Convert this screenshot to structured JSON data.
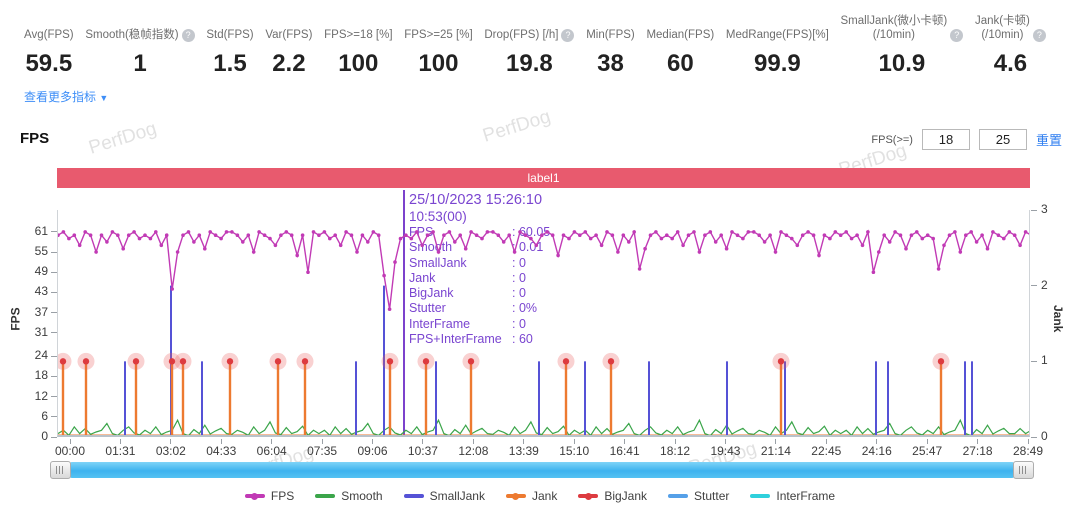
{
  "watermark": "PerfDog",
  "icons": {
    "help_glyph": "?",
    "dropdown_arrow": "▼"
  },
  "stats": {
    "items": [
      {
        "label": "Avg(FPS)",
        "value": "59.5",
        "help": false
      },
      {
        "label": "Smooth(稳帧指数)",
        "value": "1",
        "help": true
      },
      {
        "label": "Std(FPS)",
        "value": "1.5",
        "help": false
      },
      {
        "label": "Var(FPS)",
        "value": "2.2",
        "help": false
      },
      {
        "label": "FPS>=18 [%]",
        "value": "100",
        "help": false
      },
      {
        "label": "FPS>=25 [%]",
        "value": "100",
        "help": false
      },
      {
        "label": "Drop(FPS) [/h]",
        "value": "19.8",
        "help": true
      },
      {
        "label": "Min(FPS)",
        "value": "38",
        "help": false
      },
      {
        "label": "Median(FPS)",
        "value": "60",
        "help": false
      },
      {
        "label": "MedRange(FPS)[%]",
        "value": "99.9",
        "help": false
      },
      {
        "label": "SmallJank(微小卡顿)\n(/10min)",
        "value": "10.9",
        "help": true
      },
      {
        "label": "Jank(卡顿)\n(/10min)",
        "value": "4.6",
        "help": true
      }
    ],
    "more_link": "查看更多指标"
  },
  "section": {
    "title": "FPS",
    "threshold_label": "FPS(>=)",
    "threshold_low": "18",
    "threshold_high": "25",
    "reset_label": "重置"
  },
  "banner": {
    "label": "label1",
    "color": "#e85a6e"
  },
  "tooltip": {
    "datetime": "25/10/2023 15:26:10",
    "elapsed": "10:53(00)",
    "rows": [
      {
        "name": "FPS",
        "value": "60.05"
      },
      {
        "name": "Smooth",
        "value": "0.01"
      },
      {
        "name": "SmallJank",
        "value": "0"
      },
      {
        "name": "Jank",
        "value": "0"
      },
      {
        "name": "BigJank",
        "value": "0"
      },
      {
        "name": "Stutter",
        "value": "0%"
      },
      {
        "name": "InterFrame",
        "value": "0"
      },
      {
        "name": "FPS+InterFrame",
        "value": "60"
      }
    ]
  },
  "colors": {
    "fps": "#c13ab5",
    "smooth": "#3ba54a",
    "smalljank": "#5552d6",
    "jank": "#ed7a30",
    "bigjank": "#dd3b40",
    "bigjank_halo": "rgba(235,90,90,0.28)",
    "stutter": "#55a0e8",
    "interframe": "#2fd0dc",
    "crosshair": "#7c42cc",
    "banner": "#e85a6e",
    "scrollbar": "#55c2f2"
  },
  "legend": [
    {
      "label": "FPS",
      "color": "#c13ab5",
      "dot": true
    },
    {
      "label": "Smooth",
      "color": "#3ba54a",
      "dot": false
    },
    {
      "label": "SmallJank",
      "color": "#5552d6",
      "dot": false
    },
    {
      "label": "Jank",
      "color": "#ed7a30",
      "dot": true
    },
    {
      "label": "BigJank",
      "color": "#dd3b40",
      "dot": true
    },
    {
      "label": "Stutter",
      "color": "#55a0e8",
      "dot": false
    },
    {
      "label": "InterFrame",
      "color": "#2fd0dc",
      "dot": false
    }
  ],
  "chart_data": {
    "type": "line",
    "x_ticks": [
      "00:00",
      "01:31",
      "03:02",
      "04:33",
      "06:04",
      "07:35",
      "09:06",
      "10:37",
      "12:08",
      "13:39",
      "15:10",
      "16:41",
      "18:12",
      "19:43",
      "21:14",
      "22:45",
      "24:16",
      "25:47",
      "27:18",
      "28:49"
    ],
    "y_left": {
      "label": "FPS",
      "ticks": [
        61,
        55,
        49,
        43,
        37,
        31,
        24,
        18,
        12,
        6,
        0
      ],
      "max": 67.5
    },
    "y_right": {
      "label": "Jank",
      "ticks": [
        3,
        2,
        1,
        0
      ],
      "max": 3
    },
    "series": {
      "fps": [
        60,
        61,
        59,
        60,
        57,
        61,
        60,
        55,
        60,
        58,
        61,
        60,
        56,
        60,
        61,
        59,
        60,
        59,
        61,
        57,
        60,
        44,
        55,
        60,
        61,
        58,
        60,
        56,
        61,
        60,
        59,
        61,
        61,
        60,
        58,
        60,
        55,
        61,
        60,
        59,
        57,
        60,
        61,
        60,
        54,
        60,
        49,
        61,
        60,
        61,
        59,
        60,
        57,
        61,
        60,
        55,
        60,
        58,
        61,
        60,
        48,
        38,
        52,
        59,
        60,
        59,
        61,
        57,
        60,
        61,
        55,
        60,
        61,
        58,
        60,
        56,
        61,
        60,
        59,
        61,
        61,
        60,
        58,
        60,
        55,
        61,
        60,
        59,
        57,
        60,
        61,
        60,
        54,
        60,
        59,
        61,
        60,
        61,
        59,
        60,
        57,
        61,
        60,
        55,
        60,
        58,
        61,
        50,
        56,
        60,
        61,
        59,
        60,
        59,
        61,
        57,
        60,
        61,
        55,
        60,
        61,
        58,
        60,
        56,
        61,
        60,
        59,
        61,
        61,
        60,
        58,
        60,
        55,
        61,
        60,
        59,
        57,
        60,
        61,
        60,
        54,
        60,
        59,
        61,
        60,
        61,
        59,
        60,
        57,
        61,
        49,
        55,
        60,
        58,
        61,
        60,
        56,
        60,
        61,
        59,
        60,
        59,
        50,
        57,
        60,
        61,
        55,
        60,
        61,
        58,
        60,
        56,
        61,
        60,
        59,
        61,
        60,
        57,
        61,
        60
      ],
      "smooth": [
        1,
        2,
        0.5,
        3,
        1,
        2.5,
        0.8,
        1.5,
        2,
        4,
        1,
        0.5,
        2,
        3,
        1.2,
        0.6,
        2,
        1,
        3,
        0.7,
        1.5,
        2,
        5,
        1,
        0.4,
        2.2,
        1,
        3.5,
        0.9,
        1.8,
        2.6,
        1,
        0.8,
        2,
        1.4,
        0.5,
        3,
        1,
        2,
        4.5,
        1.2,
        0.7,
        2.8,
        1,
        1.6,
        3.2,
        0.5,
        2,
        1,
        2,
        0.5,
        3,
        1,
        2.5,
        0.8,
        1.5,
        2,
        4,
        1,
        0.5,
        2,
        3,
        1.2,
        0.6,
        2,
        1,
        3,
        0.7,
        1.5,
        2,
        5,
        1,
        0.4,
        2.2,
        1,
        3.5,
        0.9,
        1.8,
        2.6,
        1,
        0.8,
        2,
        1.4,
        0.5,
        3,
        1,
        2,
        4.5,
        1.2,
        0.7,
        2.8,
        1,
        1.6,
        3.2,
        0.5,
        2,
        1,
        2,
        0.5,
        3,
        1,
        2.5,
        0.8,
        1.5,
        2,
        4,
        1,
        0.5,
        2,
        3,
        1.2,
        0.6,
        2,
        1,
        3,
        0.7,
        1.5,
        2,
        5,
        1,
        0.4,
        2.2,
        1,
        3.5,
        0.9,
        1.8,
        2.6,
        1,
        0.8,
        2,
        1.4,
        0.5,
        3,
        1,
        2,
        4.5,
        1.2,
        0.7,
        2.8,
        1,
        1.6,
        3.2,
        0.5,
        2,
        1,
        2,
        0.5,
        3,
        1,
        2.5,
        0.8,
        1.5,
        2,
        4,
        1,
        0.5,
        2,
        3,
        1.2,
        0.6,
        2,
        1,
        3,
        0.7,
        1.5,
        2,
        5,
        1,
        0.4,
        2.2,
        1,
        3.5,
        0.9,
        1.8,
        2.6,
        1,
        1,
        2.5,
        1,
        2
      ],
      "smalljank_spikes": [
        [
          67,
          1
        ],
        [
          113,
          2
        ],
        [
          144,
          1
        ],
        [
          298,
          1
        ],
        [
          326,
          2
        ],
        [
          378,
          1
        ],
        [
          481,
          1
        ],
        [
          527,
          1
        ],
        [
          591,
          1
        ],
        [
          669,
          1
        ],
        [
          727,
          1
        ],
        [
          818,
          1
        ],
        [
          830,
          1
        ],
        [
          907,
          1
        ],
        [
          914,
          1
        ]
      ],
      "jank_spikes": [
        [
          5,
          1
        ],
        [
          28,
          1
        ],
        [
          78,
          1
        ],
        [
          114,
          1
        ],
        [
          125,
          1
        ],
        [
          172,
          1
        ],
        [
          220,
          1
        ],
        [
          247,
          1
        ],
        [
          332,
          1
        ],
        [
          368,
          1
        ],
        [
          413,
          1
        ],
        [
          508,
          1
        ],
        [
          553,
          1
        ],
        [
          723,
          1
        ],
        [
          883,
          1
        ]
      ],
      "bigjank_points": [
        [
          5,
          1
        ],
        [
          28,
          1
        ],
        [
          78,
          1
        ],
        [
          114,
          1
        ],
        [
          125,
          1
        ],
        [
          172,
          1
        ],
        [
          220,
          1
        ],
        [
          247,
          1
        ],
        [
          332,
          1
        ],
        [
          368,
          1
        ],
        [
          413,
          1
        ],
        [
          508,
          1
        ],
        [
          553,
          1
        ],
        [
          723,
          1
        ],
        [
          883,
          1
        ]
      ]
    },
    "crosshair_x": 346,
    "title": "FPS",
    "grid": false,
    "legend_position": "bottom"
  }
}
